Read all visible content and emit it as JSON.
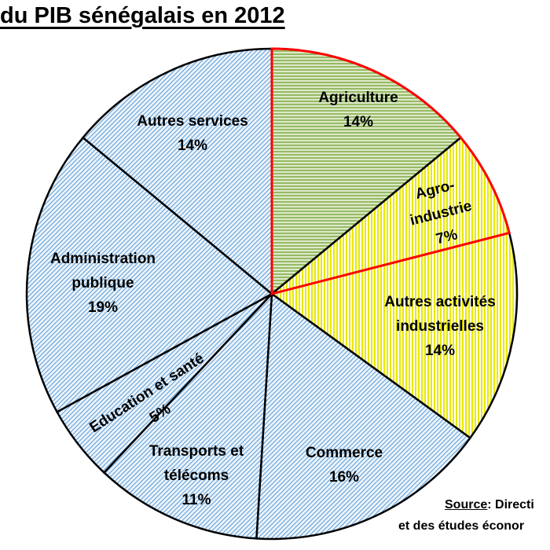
{
  "chart_data": {
    "type": "pie",
    "title": "du PIB sénégalais en 2012",
    "start": "12 o'clock, clockwise",
    "slices": [
      {
        "label": [
          "Agriculture"
        ],
        "value": 14,
        "pct": "14%",
        "pattern": "horizontal",
        "color": "#70a030",
        "bg": "#d8e6c0"
      },
      {
        "label": [
          "Agro-",
          "industrie"
        ],
        "value": 7,
        "pct": "7%",
        "pattern": "vertical",
        "color": "#e6e600",
        "bg": "#ffffa0"
      },
      {
        "label": [
          "Autres activités",
          "industrielles"
        ],
        "value": 14,
        "pct": "14%",
        "pattern": "vertical",
        "color": "#e6e600",
        "bg": "#ffffa0"
      },
      {
        "label": [
          "Commerce"
        ],
        "value": 16,
        "pct": "16%",
        "pattern": "diagonal",
        "color": "#5b9bd5",
        "bg": "#e0eef8"
      },
      {
        "label": [
          "Transports et",
          "télécoms"
        ],
        "value": 11,
        "pct": "11%",
        "pattern": "diagonal",
        "color": "#5b9bd5",
        "bg": "#e0eef8"
      },
      {
        "label": [
          "Education et santé"
        ],
        "value": 5,
        "pct": "5%",
        "pattern": "diagonal",
        "color": "#5b9bd5",
        "bg": "#e0eef8"
      },
      {
        "label": [
          "Administration",
          "publique"
        ],
        "value": 19,
        "pct": "19%",
        "pattern": "diagonal",
        "color": "#5b9bd5",
        "bg": "#e0eef8"
      },
      {
        "label": [
          "Autres services"
        ],
        "value": 14,
        "pct": "14%",
        "pattern": "diagonal",
        "color": "#5b9bd5",
        "bg": "#e0eef8"
      }
    ],
    "highlight_outline_color": "#ff0000",
    "highlighted_slices": [
      "Agriculture",
      "Agro-industrie"
    ]
  },
  "source": {
    "label": "Source",
    "line1": ": Directi",
    "line2": "et des études éconor"
  }
}
